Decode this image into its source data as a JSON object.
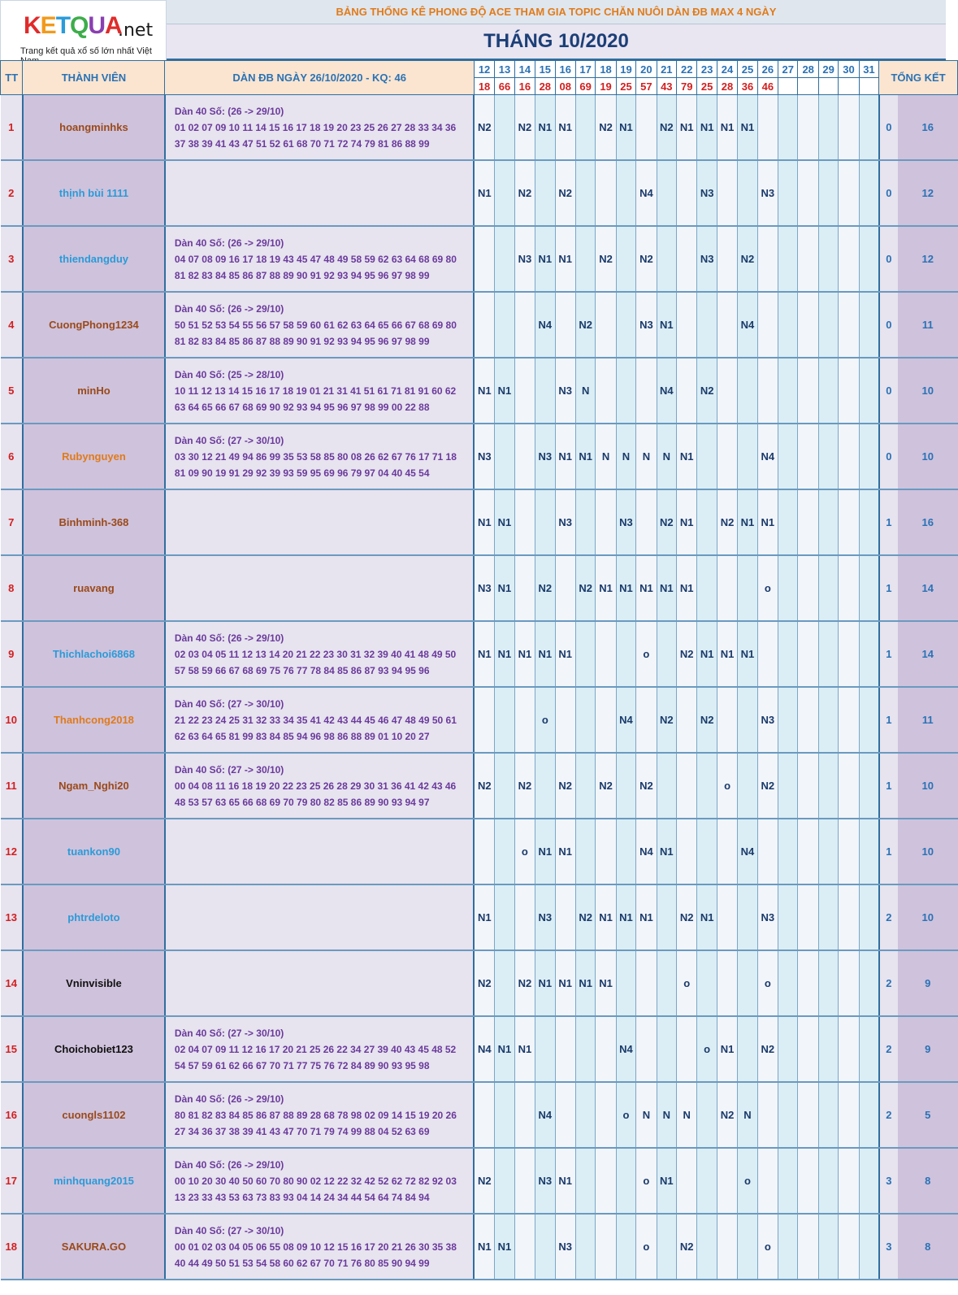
{
  "logo": {
    "word": "KETQUA",
    "tld": ".net",
    "tagline": "Trang kết quả xổ số lớn nhất Việt Nam",
    "letter_colors": [
      "#e02b2b",
      "#f29a1b",
      "#2a9bd8",
      "#3dad4a",
      "#8a3fb0",
      "#e02b2b"
    ]
  },
  "title": "BẢNG THỐNG KÊ PHONG ĐỘ ACE THAM GIA TOPIC CHĂN NUÔI DÀN ĐB MAX 4 NGÀY",
  "month": "THÁNG 10/2020",
  "headers": {
    "tt": "TT",
    "member": "THÀNH VIÊN",
    "dan": "DÀN ĐB NGÀY 26/10/2020 - KQ: 46",
    "summary": "TỔNG KẾT"
  },
  "days": [
    "12",
    "13",
    "14",
    "15",
    "16",
    "17",
    "18",
    "19",
    "20",
    "21",
    "22",
    "23",
    "24",
    "25",
    "26",
    "27",
    "28",
    "29",
    "30",
    "31"
  ],
  "results": [
    "18",
    "66",
    "16",
    "28",
    "08",
    "69",
    "19",
    "25",
    "57",
    "43",
    "79",
    "25",
    "28",
    "36",
    "46",
    "",
    "",
    "",
    "",
    ""
  ],
  "rows": [
    {
      "tt": "1",
      "name": "hoangminhks",
      "name_color": "brown",
      "dan_title": "Dàn 40 Số: (26 -> 29/10)",
      "dan_line1": "01 02 07 09 10 11 14 15 16 17 18 19 20 23 25 26 27 28 33 34 36",
      "dan_line2": "37 38 39 41 43 47 51 52 61 68 70 71 72 74 79 81 86 88 99",
      "marks": [
        "N2",
        "",
        "N2",
        "N1",
        "N1",
        "",
        "N2",
        "N1",
        "",
        "N2",
        "N1",
        "N1",
        "N1",
        "N1",
        "",
        "",
        "",
        "",
        "",
        ""
      ],
      "miss": "0",
      "total": "16"
    },
    {
      "tt": "2",
      "name": "thịnh bùi 1111",
      "name_color": "blue",
      "dan_title": "",
      "dan_line1": "",
      "dan_line2": "",
      "marks": [
        "N1",
        "",
        "N2",
        "",
        "N2",
        "",
        "",
        "",
        "N4",
        "",
        "",
        "N3",
        "",
        "",
        "N3",
        "",
        "",
        "",
        "",
        ""
      ],
      "miss": "0",
      "total": "12"
    },
    {
      "tt": "3",
      "name": "thiendangduy",
      "name_color": "blue",
      "dan_title": "Dàn 40 Số: (26 -> 29/10)",
      "dan_line1": "04 07 08 09 16 17 18 19 43 45 47 48 49 58 59 62 63 64 68 69 80",
      "dan_line2": "81 82 83 84 85 86 87 88 89 90 91 92 93 94 95 96 97 98 99",
      "marks": [
        "",
        "",
        "N3",
        "N1",
        "N1",
        "",
        "N2",
        "",
        "N2",
        "",
        "",
        "N3",
        "",
        "N2",
        "",
        "",
        "",
        "",
        "",
        ""
      ],
      "miss": "0",
      "total": "12"
    },
    {
      "tt": "4",
      "name": "CuongPhong1234",
      "name_color": "brown",
      "dan_title": "Dàn 40 Số: (26 -> 29/10)",
      "dan_line1": "50 51 52 53 54 55 56 57 58 59 60 61 62 63 64 65 66 67 68 69 80",
      "dan_line2": "81 82 83 84 85 86 87 88 89 90 91 92 93 94 95 96 97 98 99",
      "marks": [
        "",
        "",
        "",
        "N4",
        "",
        "N2",
        "",
        "",
        "N3",
        "N1",
        "",
        "",
        "",
        "N4",
        "",
        "",
        "",
        "",
        "",
        ""
      ],
      "miss": "0",
      "total": "11"
    },
    {
      "tt": "5",
      "name": "minHo",
      "name_color": "brown",
      "dan_title": "Dàn 40 Số: (25 -> 28/10)",
      "dan_line1": "10 11 12 13 14 15 16 17 18 19 01 21 31 41 51 61 71 81 91 60 62",
      "dan_line2": "63 64 65 66 67 68 69 90 92 93 94 95 96 97 98 99 00 22 88",
      "marks": [
        "N1",
        "N1",
        "",
        "",
        "N3",
        "N",
        "",
        "",
        "",
        "N4",
        "",
        "N2",
        "",
        "",
        "",
        "",
        "",
        "",
        "",
        ""
      ],
      "miss": "0",
      "total": "10"
    },
    {
      "tt": "6",
      "name": "Rubynguyen",
      "name_color": "orange",
      "dan_title": "Dàn 40 Số: (27 -> 30/10)",
      "dan_line1": "03 30 12 21 49 94 86 99 35 53 58 85 80 08 26 62 67 76 17 71 18",
      "dan_line2": "81 09 90 19 91 29 92 39 93 59 95 69 96 79 97 04 40 45 54",
      "marks": [
        "N3",
        "",
        "",
        "N3",
        "N1",
        "N1",
        "N",
        "N",
        "N",
        "N",
        "N1",
        "",
        "",
        "",
        "N4",
        "",
        "",
        "",
        "",
        ""
      ],
      "miss": "0",
      "total": "10"
    },
    {
      "tt": "7",
      "name": "Binhminh-368",
      "name_color": "brown",
      "dan_title": "",
      "dan_line1": "",
      "dan_line2": "",
      "marks": [
        "N1",
        "N1",
        "",
        "",
        "N3",
        "",
        "",
        "N3",
        "",
        "N2",
        "N1",
        "",
        "N2",
        "N1",
        "N1",
        "",
        "",
        "",
        "",
        ""
      ],
      "miss": "1",
      "total": "16"
    },
    {
      "tt": "8",
      "name": "ruavang",
      "name_color": "brown",
      "dan_title": "",
      "dan_line1": "",
      "dan_line2": "",
      "marks": [
        "N3",
        "N1",
        "",
        "N2",
        "",
        "N2",
        "N1",
        "N1",
        "N1",
        "N1",
        "N1",
        "",
        "",
        "",
        "o",
        "",
        "",
        "",
        "",
        ""
      ],
      "miss": "1",
      "total": "14"
    },
    {
      "tt": "9",
      "name": "Thichlachoi6868",
      "name_color": "blue",
      "dan_title": "Dàn 40 Số: (26 -> 29/10)",
      "dan_line1": "02 03 04 05 11 12 13 14 20 21 22 23 30 31 32 39 40 41 48 49 50",
      "dan_line2": "57 58 59 66 67 68 69 75 76 77 78 84 85 86 87 93 94 95 96",
      "marks": [
        "N1",
        "N1",
        "N1",
        "N1",
        "N1",
        "",
        "",
        "",
        "o",
        "",
        "N2",
        "N1",
        "N1",
        "N1",
        "",
        "",
        "",
        "",
        "",
        ""
      ],
      "miss": "1",
      "total": "14"
    },
    {
      "tt": "10",
      "name": "Thanhcong2018",
      "name_color": "orange",
      "dan_title": "Dàn 40 Số: (27 -> 30/10)",
      "dan_line1": "21 22 23 24 25 31 32 33 34 35 41 42 43 44 45 46 47 48 49 50 61",
      "dan_line2": "62 63 64 65 81 99 83 84 85 94 96 98 86 88 89 01 10 20 27",
      "marks": [
        "",
        "",
        "",
        "o",
        "",
        "",
        "",
        "N4",
        "",
        "N2",
        "",
        "N2",
        "",
        "",
        "N3",
        "",
        "",
        "",
        "",
        ""
      ],
      "miss": "1",
      "total": "11"
    },
    {
      "tt": "11",
      "name": "Ngam_Nghi20",
      "name_color": "brown",
      "dan_title": "Dàn 40 Số: (27 -> 30/10)",
      "dan_line1": "00 04 08 11 16 18 19 20 22 23 25 26 28 29 30 31 36 41 42 43 46",
      "dan_line2": "48 53 57 63 65 66 68 69 70 79 80 82 85 86 89 90 93 94 97",
      "marks": [
        "N2",
        "",
        "N2",
        "",
        "N2",
        "",
        "N2",
        "",
        "N2",
        "",
        "",
        "",
        "o",
        "",
        "N2",
        "",
        "",
        "",
        "",
        ""
      ],
      "miss": "1",
      "total": "10"
    },
    {
      "tt": "12",
      "name": "tuankon90",
      "name_color": "blue",
      "dan_title": "",
      "dan_line1": "",
      "dan_line2": "",
      "marks": [
        "",
        "",
        "o",
        "N1",
        "N1",
        "",
        "",
        "",
        "N4",
        "N1",
        "",
        "",
        "",
        "N4",
        "",
        "",
        "",
        "",
        "",
        ""
      ],
      "miss": "1",
      "total": "10"
    },
    {
      "tt": "13",
      "name": "phtrdeloto",
      "name_color": "blue",
      "dan_title": "",
      "dan_line1": "",
      "dan_line2": "",
      "marks": [
        "N1",
        "",
        "",
        "N3",
        "",
        "N2",
        "N1",
        "N1",
        "N1",
        "",
        "N2",
        "N1",
        "",
        "",
        "N3",
        "",
        "",
        "",
        "",
        ""
      ],
      "miss": "2",
      "total": "10"
    },
    {
      "tt": "14",
      "name": "Vninvisible",
      "name_color": "black",
      "dan_title": "",
      "dan_line1": "",
      "dan_line2": "",
      "marks": [
        "N2",
        "",
        "N2",
        "N1",
        "N1",
        "N1",
        "N1",
        "",
        "",
        "",
        "o",
        "",
        "",
        "",
        "o",
        "",
        "",
        "",
        "",
        ""
      ],
      "miss": "2",
      "total": "9"
    },
    {
      "tt": "15",
      "name": "Choichobiet123",
      "name_color": "black",
      "dan_title": "Dàn 40 Số: (27 -> 30/10)",
      "dan_line1": "02 04 07 09 11 12 16 17 20 21 25 26 22 34 27 39 40 43 45 48 52",
      "dan_line2": "54 57 59 61 62 66 67 70 71 77 75 76 72 84 89 90 93 95 98",
      "marks": [
        "N4",
        "N1",
        "N1",
        "",
        "",
        "",
        "",
        "N4",
        "",
        "",
        "",
        "o",
        "N1",
        "",
        "N2",
        "",
        "",
        "",
        "",
        ""
      ],
      "miss": "2",
      "total": "9"
    },
    {
      "tt": "16",
      "name": "cuongls1102",
      "name_color": "brown",
      "dan_title": "Dàn 40 Số: (26 -> 29/10)",
      "dan_line1": "80 81 82 83 84 85 86 87 88 89 28 68 78 98 02 09 14 15 19 20 26",
      "dan_line2": "27 34 36 37 38 39 41 43 47 70 71 79 74 99 88 04 52 63 69",
      "marks": [
        "",
        "",
        "",
        "N4",
        "",
        "",
        "",
        "o",
        "N",
        "N",
        "N",
        "",
        "N2",
        "N",
        "",
        "",
        "",
        "",
        "",
        ""
      ],
      "miss": "2",
      "total": "5"
    },
    {
      "tt": "17",
      "name": "minhquang2015",
      "name_color": "blue",
      "dan_title": "Dàn 40 Số: (26 -> 29/10)",
      "dan_line1": "00 10 20 30 40 50 60 70 80 90 02 12 22 32 42 52 62 72 82 92 03",
      "dan_line2": "13 23 33 43 53 63 73 83 93 04 14 24 34 44 54 64 74 84 94",
      "marks": [
        "N2",
        "",
        "",
        "N3",
        "N1",
        "",
        "",
        "",
        "o",
        "N1",
        "",
        "",
        "",
        "o",
        "",
        "",
        "",
        "",
        "",
        ""
      ],
      "miss": "3",
      "total": "8"
    },
    {
      "tt": "18",
      "name": "SAKURA.GO",
      "name_color": "brown",
      "dan_title": "Dàn 40 Số: (27 -> 30/10)",
      "dan_line1": "00 01 02 03 04 05 06 55 08 09 10 12 15 16 17 20 21 26 30 35 38",
      "dan_line2": "40 44 49 50 51 53 54 58 60 62 67 70 71 76 80 85 90 94 99",
      "marks": [
        "N1",
        "N1",
        "",
        "",
        "N3",
        "",
        "",
        "",
        "o",
        "",
        "N2",
        "",
        "",
        "",
        "o",
        "",
        "",
        "",
        "",
        ""
      ],
      "miss": "3",
      "total": "8"
    }
  ]
}
